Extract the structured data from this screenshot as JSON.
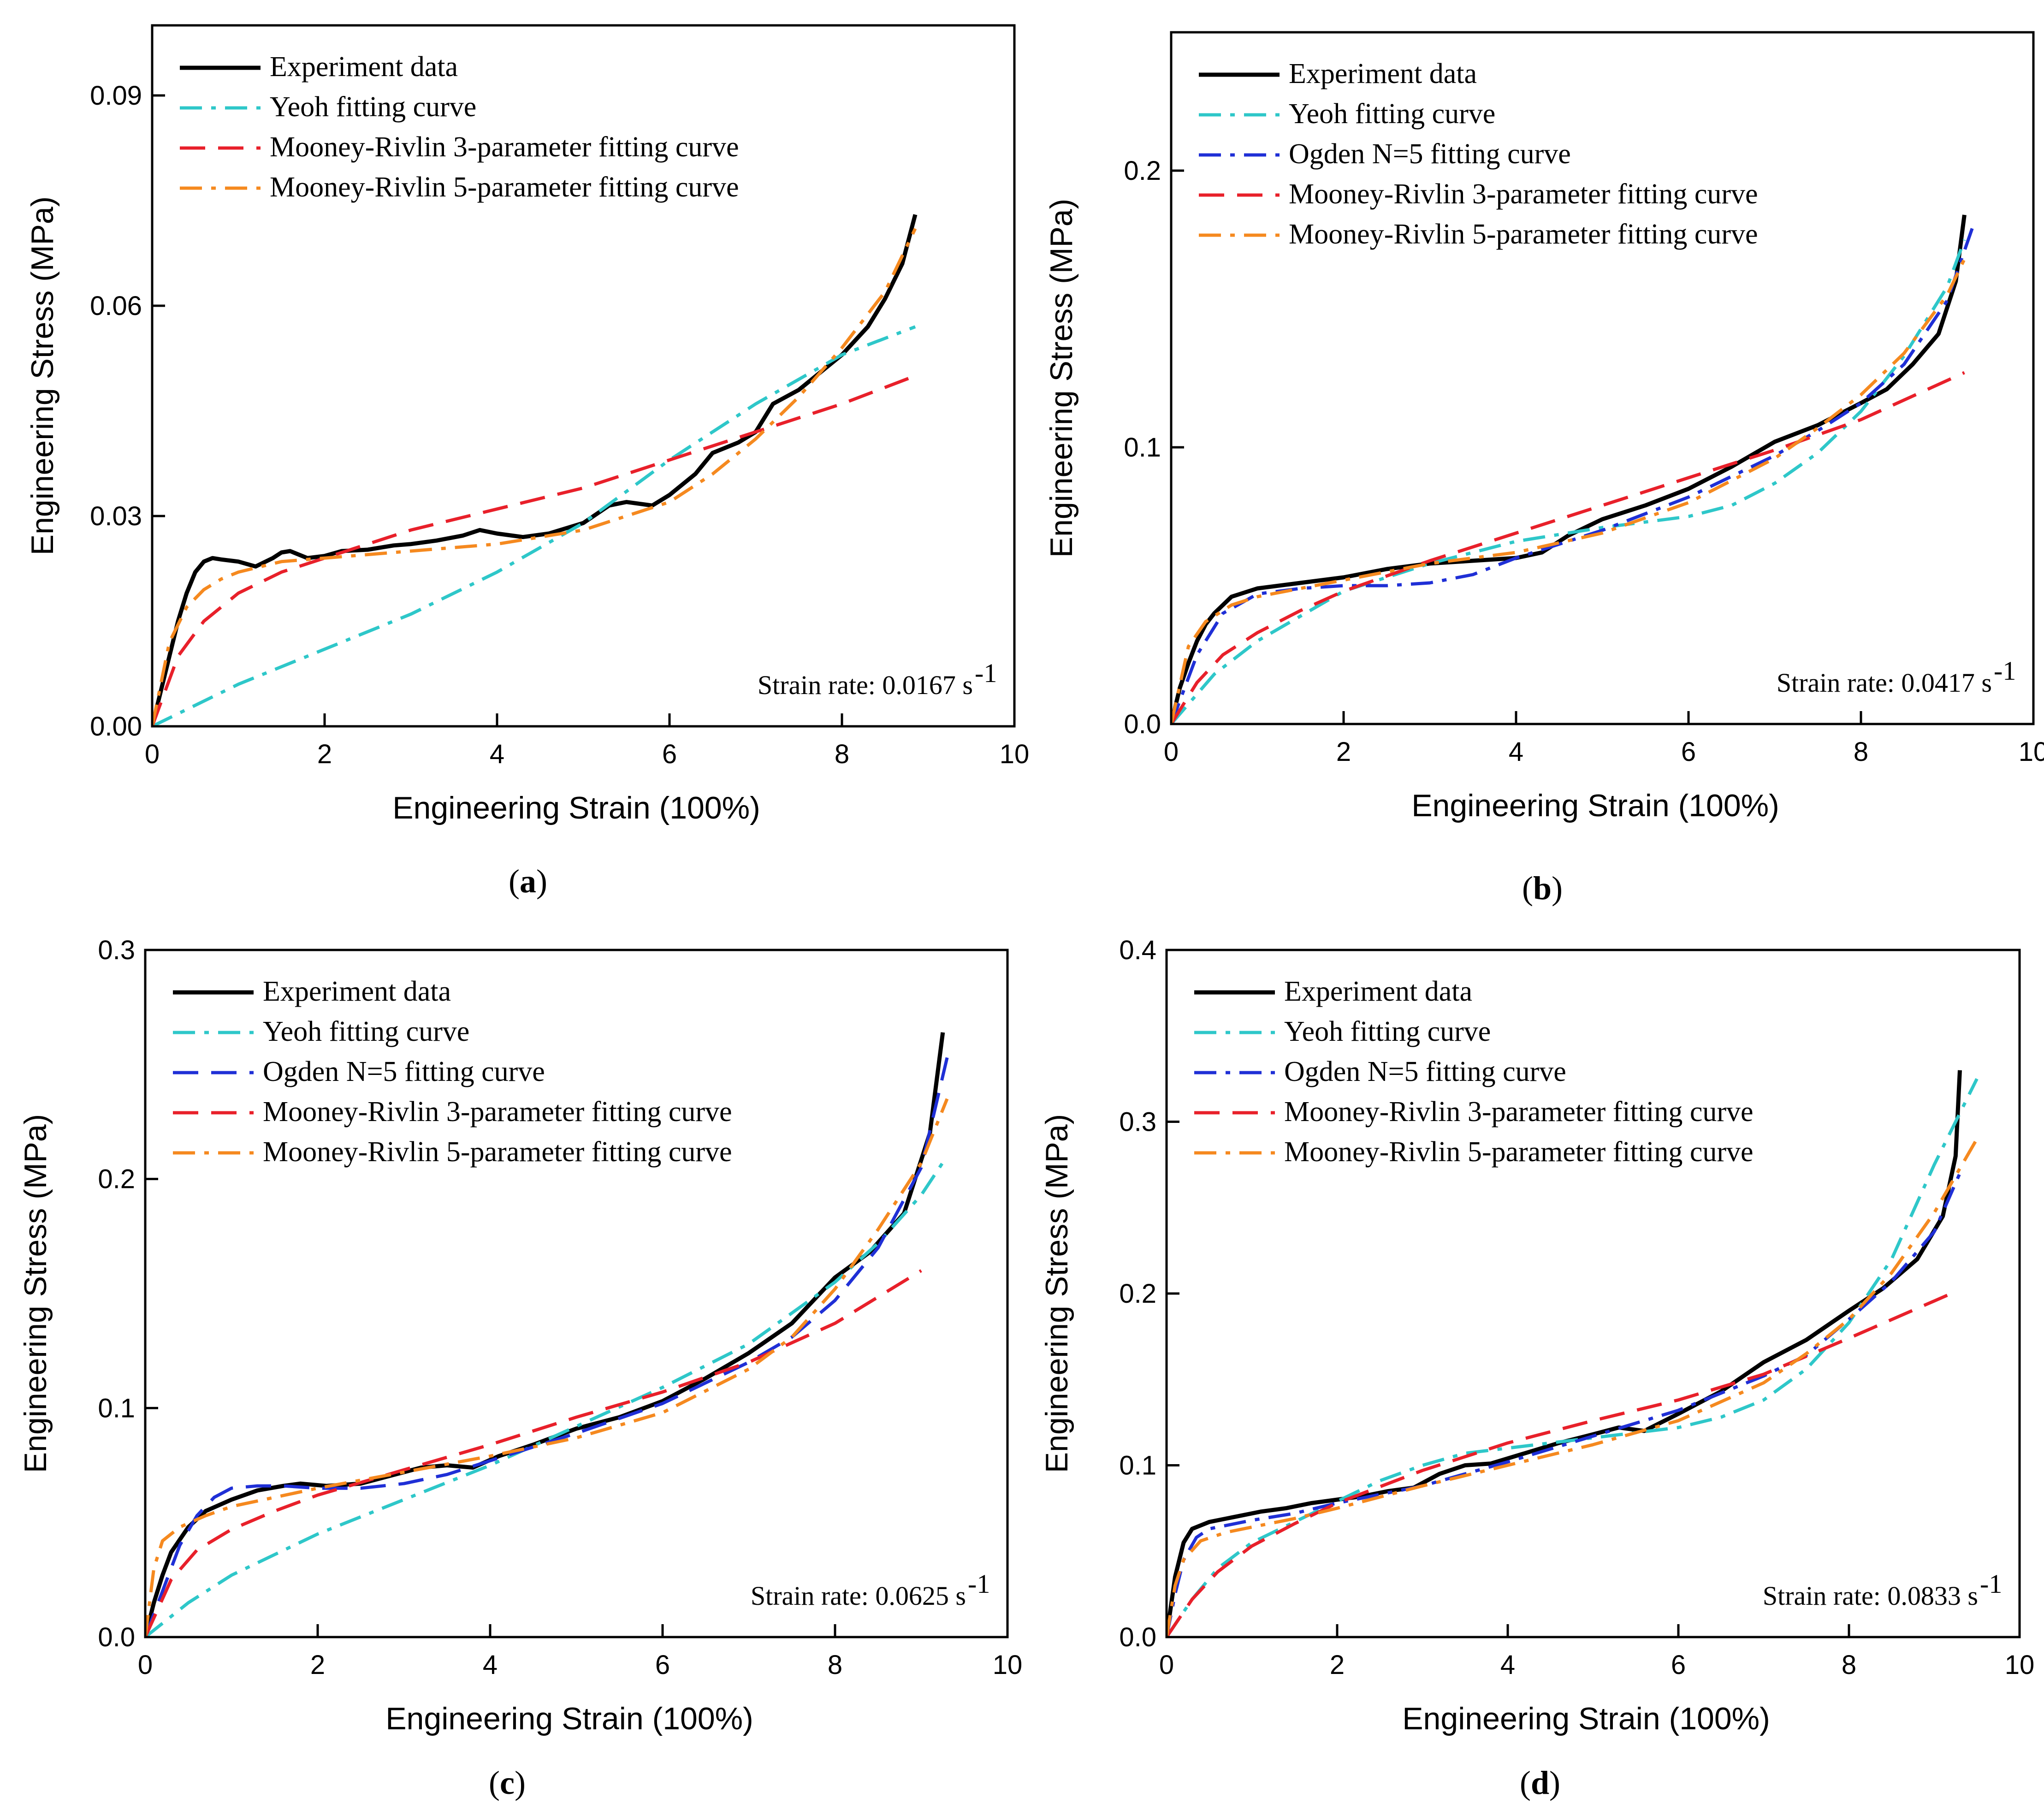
{
  "colors": {
    "Experiment data": "#000000",
    "Yeoh fitting curve": "#2ec7c9",
    "Ogden N=5 fitting curve": "#1f2fd6",
    "Mooney-Rivlin 3-parameter fitting curve": "#e8202a",
    "Mooney-Rivlin 5-parameter fitting curve": "#f5891f"
  },
  "chart_data": [
    {
      "type": "line",
      "panel_label": "a",
      "xlabel": "Engineering Strain (100%)",
      "ylabel": "Engineering Stress (MPa)",
      "xlim": [
        0,
        10
      ],
      "ylim": [
        0,
        0.1
      ],
      "xticks": [
        0,
        2,
        4,
        6,
        8,
        10
      ],
      "xtick_labels": [
        "0",
        "2",
        "4",
        "6",
        "8",
        "10"
      ],
      "yticks": [
        0,
        0.03,
        0.06,
        0.09
      ],
      "ytick_labels": [
        "0.00",
        "0.03",
        "0.06",
        "0.09"
      ],
      "annotation": "Strain rate: 0.0167 s",
      "annotation_sup": "-1",
      "legend_position": "top-left",
      "series": [
        {
          "name": "Experiment data",
          "style": "solid",
          "x": [
            0,
            0.1,
            0.2,
            0.3,
            0.4,
            0.5,
            0.6,
            0.7,
            0.8,
            1.0,
            1.2,
            1.4,
            1.5,
            1.6,
            1.8,
            2.0,
            2.2,
            2.5,
            2.8,
            3.0,
            3.3,
            3.6,
            3.8,
            4.0,
            4.3,
            4.6,
            5.0,
            5.3,
            5.5,
            5.8,
            6.0,
            6.3,
            6.5,
            6.8,
            7.0,
            7.2,
            7.5,
            7.8,
            8.0,
            8.3,
            8.5,
            8.7,
            8.85
          ],
          "y": [
            0,
            0.005,
            0.01,
            0.015,
            0.019,
            0.022,
            0.0235,
            0.024,
            0.0238,
            0.0235,
            0.0228,
            0.024,
            0.0248,
            0.025,
            0.024,
            0.0243,
            0.025,
            0.0252,
            0.0258,
            0.026,
            0.0265,
            0.0272,
            0.028,
            0.0275,
            0.027,
            0.0275,
            0.029,
            0.0315,
            0.032,
            0.0315,
            0.033,
            0.036,
            0.039,
            0.0405,
            0.042,
            0.046,
            0.048,
            0.051,
            0.053,
            0.057,
            0.061,
            0.066,
            0.073
          ]
        },
        {
          "name": "Yeoh fitting curve",
          "style": "dashdot",
          "x": [
            0,
            1,
            2,
            3,
            4,
            5,
            6,
            7,
            8,
            8.85
          ],
          "y": [
            0,
            0.006,
            0.011,
            0.016,
            0.022,
            0.029,
            0.038,
            0.046,
            0.053,
            0.057
          ]
        },
        {
          "name": "Mooney-Rivlin 3-parameter fitting curve",
          "style": "dash",
          "x": [
            0,
            0.3,
            0.6,
            1,
            1.5,
            2,
            3,
            4,
            5,
            6,
            7,
            8,
            8.85
          ],
          "y": [
            0,
            0.01,
            0.015,
            0.019,
            0.022,
            0.024,
            0.028,
            0.031,
            0.034,
            0.038,
            0.042,
            0.046,
            0.05
          ]
        },
        {
          "name": "Mooney-Rivlin 5-parameter fitting curve",
          "style": "dashdot",
          "x": [
            0,
            0.2,
            0.4,
            0.6,
            0.8,
            1,
            1.5,
            2,
            3,
            4,
            5,
            6,
            6.5,
            7,
            7.5,
            8,
            8.5,
            8.85
          ],
          "y": [
            0,
            0.012,
            0.017,
            0.0195,
            0.021,
            0.022,
            0.0235,
            0.024,
            0.025,
            0.026,
            0.028,
            0.032,
            0.036,
            0.041,
            0.047,
            0.054,
            0.062,
            0.071
          ]
        }
      ]
    },
    {
      "type": "line",
      "panel_label": "b",
      "xlabel": "Engineering Strain (100%)",
      "ylabel": "Engineering Stress (MPa)",
      "xlim": [
        0,
        10
      ],
      "ylim": [
        0,
        0.25
      ],
      "xticks": [
        0,
        2,
        4,
        6,
        8,
        10
      ],
      "xtick_labels": [
        "0",
        "2",
        "4",
        "6",
        "8",
        "10"
      ],
      "yticks": [
        0,
        0.1,
        0.2
      ],
      "ytick_labels": [
        "0.0",
        "0.1",
        "0.2"
      ],
      "annotation": "Strain rate: 0.0417 s",
      "annotation_sup": "-1",
      "legend_position": "top-left",
      "series": [
        {
          "name": "Experiment data",
          "style": "solid",
          "x": [
            0,
            0.1,
            0.2,
            0.3,
            0.4,
            0.5,
            0.7,
            1,
            1.5,
            2,
            2.5,
            3,
            3.5,
            4,
            4.3,
            4.6,
            5,
            5.5,
            6,
            6.5,
            7,
            7.5,
            8,
            8.3,
            8.6,
            8.9,
            9.1,
            9.2
          ],
          "y": [
            0,
            0.013,
            0.022,
            0.03,
            0.036,
            0.04,
            0.046,
            0.049,
            0.051,
            0.053,
            0.056,
            0.058,
            0.059,
            0.06,
            0.062,
            0.068,
            0.074,
            0.079,
            0.085,
            0.093,
            0.102,
            0.108,
            0.116,
            0.121,
            0.13,
            0.141,
            0.16,
            0.184
          ]
        },
        {
          "name": "Yeoh fitting curve",
          "style": "dashdot",
          "x": [
            0,
            0.5,
            1,
            2,
            3,
            4,
            5,
            6,
            6.5,
            7,
            7.5,
            8,
            8.5,
            9,
            9.2
          ],
          "y": [
            0,
            0.018,
            0.03,
            0.048,
            0.058,
            0.066,
            0.071,
            0.075,
            0.079,
            0.087,
            0.098,
            0.113,
            0.133,
            0.158,
            0.175
          ]
        },
        {
          "name": "Ogden N=5 fitting curve",
          "style": "dashdot",
          "x": [
            0,
            0.3,
            0.6,
            1,
            1.5,
            2,
            2.5,
            3,
            3.5,
            4,
            5,
            6,
            7,
            7.5,
            8,
            8.5,
            9,
            9.3
          ],
          "y": [
            0,
            0.025,
            0.04,
            0.047,
            0.049,
            0.05,
            0.05,
            0.051,
            0.054,
            0.06,
            0.07,
            0.082,
            0.097,
            0.106,
            0.116,
            0.13,
            0.153,
            0.18
          ]
        },
        {
          "name": "Mooney-Rivlin 3-parameter fitting curve",
          "style": "dash",
          "x": [
            0,
            0.3,
            0.6,
            1,
            1.5,
            2,
            3,
            4,
            5,
            6,
            7,
            8,
            9.2
          ],
          "y": [
            0,
            0.015,
            0.025,
            0.033,
            0.041,
            0.048,
            0.059,
            0.069,
            0.079,
            0.089,
            0.099,
            0.11,
            0.127
          ]
        },
        {
          "name": "Mooney-Rivlin 5-parameter fitting curve",
          "style": "dashdot",
          "x": [
            0,
            0.2,
            0.4,
            0.7,
            1,
            1.5,
            2,
            3,
            4,
            5,
            6,
            7,
            7.5,
            8,
            8.5,
            9,
            9.2
          ],
          "y": [
            0,
            0.028,
            0.037,
            0.043,
            0.046,
            0.049,
            0.052,
            0.058,
            0.062,
            0.069,
            0.08,
            0.096,
            0.107,
            0.119,
            0.134,
            0.155,
            0.168
          ]
        }
      ]
    },
    {
      "type": "line",
      "panel_label": "c",
      "xlabel": "Engineering Strain (100%)",
      "ylabel": "Engineering Stress (MPa)",
      "xlim": [
        0,
        10
      ],
      "ylim": [
        0,
        0.3
      ],
      "xticks": [
        0,
        2,
        4,
        6,
        8,
        10
      ],
      "xtick_labels": [
        "0",
        "2",
        "4",
        "6",
        "8",
        "10"
      ],
      "yticks": [
        0,
        0.1,
        0.2,
        0.3
      ],
      "ytick_labels": [
        "0.0",
        "0.1",
        "0.2",
        "0.3"
      ],
      "annotation": "Strain rate: 0.0625 s",
      "annotation_sup": "-1",
      "legend_position": "top-left",
      "series": [
        {
          "name": "Experiment data",
          "style": "solid",
          "x": [
            0,
            0.1,
            0.2,
            0.3,
            0.5,
            0.7,
            1,
            1.3,
            1.6,
            1.8,
            2.1,
            2.5,
            2.8,
            3.2,
            3.5,
            3.8,
            4.1,
            4.5,
            5,
            5.5,
            6,
            6.5,
            7,
            7.5,
            8,
            8.4,
            8.8,
            9.1,
            9.25
          ],
          "y": [
            0,
            0.015,
            0.027,
            0.037,
            0.048,
            0.055,
            0.06,
            0.064,
            0.066,
            0.067,
            0.066,
            0.067,
            0.07,
            0.074,
            0.075,
            0.074,
            0.079,
            0.084,
            0.091,
            0.096,
            0.103,
            0.113,
            0.124,
            0.137,
            0.157,
            0.168,
            0.185,
            0.22,
            0.264
          ]
        },
        {
          "name": "Yeoh fitting curve",
          "style": "dashdot",
          "x": [
            0,
            0.5,
            1,
            2,
            3,
            4,
            5,
            6,
            7,
            8,
            8.5,
            9,
            9.3
          ],
          "y": [
            0,
            0.015,
            0.027,
            0.045,
            0.06,
            0.075,
            0.092,
            0.109,
            0.128,
            0.155,
            0.172,
            0.193,
            0.21
          ]
        },
        {
          "name": "Ogden N=5 fitting curve",
          "style": "dash",
          "x": [
            0,
            0.2,
            0.4,
            0.6,
            0.8,
            1,
            1.3,
            1.6,
            2,
            2.5,
            3,
            3.5,
            4,
            5,
            6,
            7,
            7.5,
            8,
            8.5,
            9,
            9.3
          ],
          "y": [
            0,
            0.02,
            0.04,
            0.053,
            0.061,
            0.065,
            0.066,
            0.066,
            0.065,
            0.065,
            0.067,
            0.071,
            0.077,
            0.089,
            0.102,
            0.12,
            0.131,
            0.147,
            0.17,
            0.205,
            0.253
          ]
        },
        {
          "name": "Mooney-Rivlin 3-parameter fitting curve",
          "style": "dash",
          "x": [
            0,
            0.3,
            0.6,
            1,
            1.5,
            2,
            3,
            4,
            5,
            6,
            7,
            8,
            9.0
          ],
          "y": [
            0,
            0.025,
            0.038,
            0.047,
            0.055,
            0.062,
            0.073,
            0.084,
            0.096,
            0.107,
            0.12,
            0.137,
            0.16
          ]
        },
        {
          "name": "Mooney-Rivlin 5-parameter fitting curve",
          "style": "dashdot",
          "x": [
            0,
            0.1,
            0.2,
            0.4,
            0.7,
            1,
            1.5,
            2,
            3,
            4,
            5,
            6,
            7,
            7.5,
            8,
            8.5,
            9,
            9.3
          ],
          "y": [
            0,
            0.03,
            0.042,
            0.048,
            0.053,
            0.057,
            0.061,
            0.065,
            0.072,
            0.079,
            0.087,
            0.098,
            0.117,
            0.131,
            0.152,
            0.178,
            0.207,
            0.235
          ]
        }
      ]
    },
    {
      "type": "line",
      "panel_label": "d",
      "xlabel": "Engineering Strain (100%)",
      "ylabel": "Engineering Stress (MPa)",
      "xlim": [
        0,
        10
      ],
      "ylim": [
        0,
        0.4
      ],
      "xticks": [
        0,
        2,
        4,
        6,
        8,
        10
      ],
      "xtick_labels": [
        "0",
        "2",
        "4",
        "6",
        "8",
        "10"
      ],
      "yticks": [
        0,
        0.1,
        0.2,
        0.3,
        0.4
      ],
      "ytick_labels": [
        "0.0",
        "0.1",
        "0.2",
        "0.3",
        "0.4"
      ],
      "annotation": "Strain rate: 0.0833 s",
      "annotation_sup": "-1",
      "legend_position": "top-left",
      "series": [
        {
          "name": "Experiment data",
          "style": "solid",
          "x": [
            0,
            0.1,
            0.2,
            0.3,
            0.5,
            0.8,
            1.1,
            1.4,
            1.7,
            2,
            2.3,
            2.6,
            2.9,
            3.2,
            3.5,
            3.8,
            4.2,
            4.6,
            5,
            5.3,
            5.6,
            6,
            6.5,
            7,
            7.5,
            8,
            8.4,
            8.8,
            9.1,
            9.25,
            9.3
          ],
          "y": [
            0,
            0.035,
            0.055,
            0.063,
            0.067,
            0.07,
            0.073,
            0.075,
            0.078,
            0.08,
            0.082,
            0.085,
            0.087,
            0.095,
            0.1,
            0.101,
            0.107,
            0.113,
            0.118,
            0.122,
            0.12,
            0.13,
            0.143,
            0.16,
            0.173,
            0.19,
            0.203,
            0.22,
            0.245,
            0.28,
            0.33
          ]
        },
        {
          "name": "Yeoh fitting curve",
          "style": "dashdot",
          "x": [
            0,
            0.3,
            0.6,
            1,
            1.5,
            2,
            2.5,
            3,
            3.5,
            4,
            5,
            6,
            6.5,
            7,
            7.5,
            8,
            8.5,
            9,
            9.5
          ],
          "y": [
            0,
            0.022,
            0.04,
            0.055,
            0.067,
            0.079,
            0.091,
            0.1,
            0.107,
            0.11,
            0.116,
            0.122,
            0.128,
            0.138,
            0.156,
            0.183,
            0.22,
            0.275,
            0.325
          ]
        },
        {
          "name": "Ogden N=5 fitting curve",
          "style": "dashdot",
          "x": [
            0,
            0.1,
            0.2,
            0.35,
            0.5,
            0.8,
            1,
            1.5,
            2,
            3,
            4,
            5,
            6,
            7,
            7.5,
            8,
            8.5,
            9,
            9.3
          ],
          "y": [
            0,
            0.025,
            0.045,
            0.058,
            0.063,
            0.066,
            0.068,
            0.072,
            0.078,
            0.088,
            0.102,
            0.117,
            0.132,
            0.152,
            0.164,
            0.185,
            0.207,
            0.236,
            0.27
          ]
        },
        {
          "name": "Mooney-Rivlin 3-parameter fitting curve",
          "style": "dash",
          "x": [
            0,
            0.3,
            0.6,
            1,
            1.5,
            2,
            3,
            4,
            5,
            6,
            7,
            8,
            9.2
          ],
          "y": [
            0,
            0.022,
            0.038,
            0.053,
            0.066,
            0.078,
            0.097,
            0.113,
            0.126,
            0.138,
            0.153,
            0.174,
            0.2
          ]
        },
        {
          "name": "Mooney-Rivlin 5-parameter fitting curve",
          "style": "dashdot",
          "x": [
            0,
            0.1,
            0.2,
            0.4,
            0.7,
            1,
            1.5,
            2,
            3,
            4,
            5,
            6,
            7,
            7.5,
            8,
            8.5,
            9,
            9.5
          ],
          "y": [
            0,
            0.03,
            0.045,
            0.056,
            0.061,
            0.064,
            0.069,
            0.075,
            0.088,
            0.1,
            0.112,
            0.126,
            0.148,
            0.165,
            0.185,
            0.212,
            0.247,
            0.29
          ]
        }
      ]
    }
  ]
}
